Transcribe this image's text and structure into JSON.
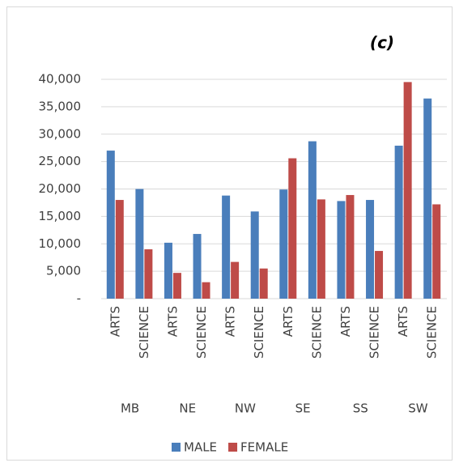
{
  "chart_data": {
    "type": "bar",
    "title": "(c)",
    "categories": [
      "ARTS",
      "SCIENCE",
      "ARTS",
      "SCIENCE",
      "ARTS",
      "SCIENCE",
      "ARTS",
      "SCIENCE",
      "ARTS",
      "SCIENCE",
      "ARTS",
      "SCIENCE"
    ],
    "groups": [
      "MB",
      "NE",
      "NW",
      "SE",
      "SS",
      "SW"
    ],
    "series": [
      {
        "name": "MALE",
        "color": "#4a7ebb",
        "values": [
          27000,
          20000,
          10200,
          11800,
          18800,
          15900,
          19900,
          28700,
          17800,
          18000,
          27900,
          36500
        ]
      },
      {
        "name": "FEMALE",
        "color": "#be4b48",
        "values": [
          18000,
          9000,
          4700,
          3000,
          6700,
          5500,
          25600,
          18100,
          18900,
          8700,
          39500,
          17200
        ]
      }
    ],
    "ylim": [
      0,
      40000
    ],
    "yticks": [
      {
        "value": 0,
        "label": "-"
      },
      {
        "value": 5000,
        "label": "5,000"
      },
      {
        "value": 10000,
        "label": "10,000"
      },
      {
        "value": 15000,
        "label": "15,000"
      },
      {
        "value": 20000,
        "label": "20,000"
      },
      {
        "value": 25000,
        "label": "25,000"
      },
      {
        "value": 30000,
        "label": "30,000"
      },
      {
        "value": 35000,
        "label": "35,000"
      },
      {
        "value": 40000,
        "label": "40,000"
      }
    ],
    "grid": true,
    "legend": "bottom"
  }
}
